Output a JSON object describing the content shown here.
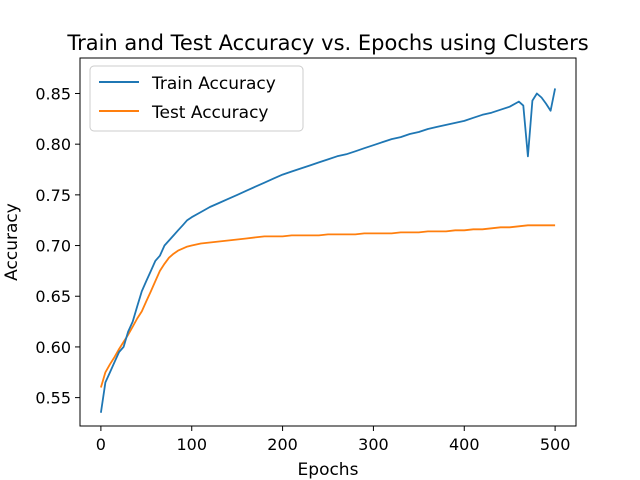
{
  "chart_data": {
    "type": "line",
    "title": "Train and Test Accuracy vs. Epochs using Clusters",
    "xlabel": "Epochs",
    "ylabel": "Accuracy",
    "xlim": [
      -23,
      523
    ],
    "ylim": [
      0.522,
      0.885
    ],
    "x_ticks": [
      0,
      100,
      200,
      300,
      400,
      500
    ],
    "y_ticks": [
      0.55,
      0.6,
      0.65,
      0.7,
      0.75,
      0.8,
      0.85
    ],
    "x_tick_labels": [
      "0",
      "100",
      "200",
      "300",
      "400",
      "500"
    ],
    "y_tick_labels": [
      "0.55",
      "0.60",
      "0.65",
      "0.70",
      "0.75",
      "0.80",
      "0.85"
    ],
    "legend_position": "top-left",
    "grid": false,
    "series": [
      {
        "name": "Train Accuracy",
        "color": "#1f77b4",
        "x": [
          0,
          5,
          10,
          15,
          20,
          25,
          30,
          35,
          40,
          45,
          50,
          55,
          60,
          65,
          70,
          75,
          80,
          85,
          90,
          95,
          100,
          110,
          120,
          130,
          140,
          150,
          160,
          170,
          180,
          190,
          200,
          210,
          220,
          230,
          240,
          250,
          260,
          270,
          280,
          290,
          300,
          310,
          320,
          330,
          340,
          350,
          360,
          370,
          380,
          390,
          400,
          410,
          420,
          430,
          440,
          450,
          460,
          465,
          470,
          475,
          480,
          485,
          490,
          495,
          500
        ],
        "y": [
          0.535,
          0.565,
          0.575,
          0.585,
          0.595,
          0.6,
          0.615,
          0.625,
          0.64,
          0.655,
          0.665,
          0.675,
          0.685,
          0.69,
          0.7,
          0.705,
          0.71,
          0.715,
          0.72,
          0.725,
          0.728,
          0.733,
          0.738,
          0.742,
          0.746,
          0.75,
          0.754,
          0.758,
          0.762,
          0.766,
          0.77,
          0.773,
          0.776,
          0.779,
          0.782,
          0.785,
          0.788,
          0.79,
          0.793,
          0.796,
          0.799,
          0.802,
          0.805,
          0.807,
          0.81,
          0.812,
          0.815,
          0.817,
          0.819,
          0.821,
          0.823,
          0.826,
          0.829,
          0.831,
          0.834,
          0.837,
          0.842,
          0.838,
          0.788,
          0.843,
          0.85,
          0.846,
          0.84,
          0.833,
          0.855
        ]
      },
      {
        "name": "Test Accuracy",
        "color": "#ff7f0e",
        "x": [
          0,
          5,
          10,
          15,
          20,
          25,
          30,
          35,
          40,
          45,
          50,
          55,
          60,
          65,
          70,
          75,
          80,
          85,
          90,
          95,
          100,
          110,
          120,
          130,
          140,
          150,
          160,
          170,
          180,
          190,
          200,
          210,
          220,
          230,
          240,
          250,
          260,
          270,
          280,
          290,
          300,
          310,
          320,
          330,
          340,
          350,
          360,
          370,
          380,
          390,
          400,
          410,
          420,
          430,
          440,
          450,
          460,
          470,
          480,
          490,
          500
        ],
        "y": [
          0.56,
          0.575,
          0.583,
          0.59,
          0.598,
          0.605,
          0.612,
          0.62,
          0.628,
          0.635,
          0.645,
          0.655,
          0.665,
          0.675,
          0.682,
          0.688,
          0.692,
          0.695,
          0.697,
          0.699,
          0.7,
          0.702,
          0.703,
          0.704,
          0.705,
          0.706,
          0.707,
          0.708,
          0.709,
          0.709,
          0.709,
          0.71,
          0.71,
          0.71,
          0.71,
          0.711,
          0.711,
          0.711,
          0.711,
          0.712,
          0.712,
          0.712,
          0.712,
          0.713,
          0.713,
          0.713,
          0.714,
          0.714,
          0.714,
          0.715,
          0.715,
          0.716,
          0.716,
          0.717,
          0.718,
          0.718,
          0.719,
          0.72,
          0.72,
          0.72,
          0.72
        ]
      }
    ]
  }
}
